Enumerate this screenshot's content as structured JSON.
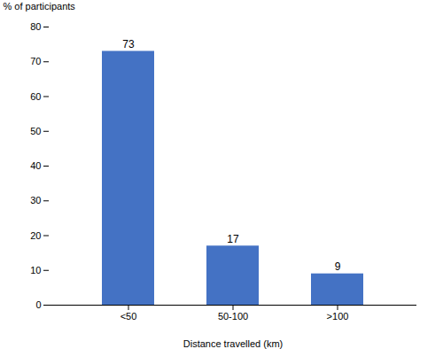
{
  "chart_data": {
    "type": "bar",
    "categories": [
      "<50",
      "50-100",
      ">100"
    ],
    "values": [
      73,
      17,
      9
    ],
    "color": "#4472C4",
    "xlabel": "Distance travelled (km)",
    "ylabel": "% of participants",
    "ylim": [
      0,
      80
    ],
    "yticks": [
      0,
      10,
      20,
      30,
      40,
      50,
      60,
      70,
      80
    ],
    "grid": false,
    "data_labels": true
  }
}
